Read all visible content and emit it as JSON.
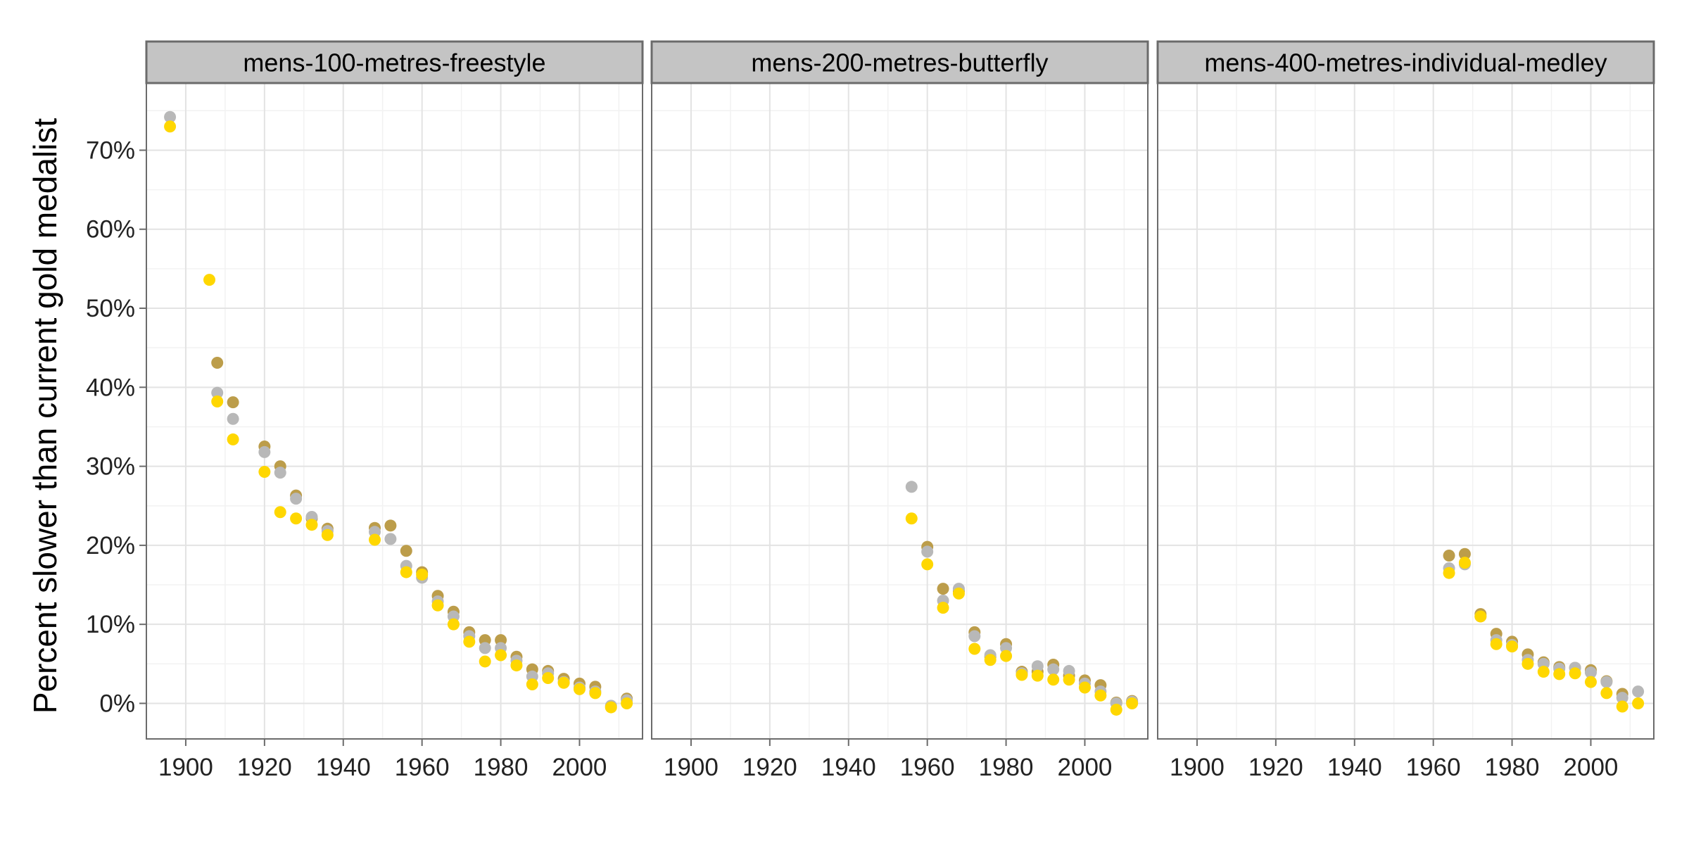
{
  "chart_data": {
    "type": "scatter",
    "ylabel": "Percent slower than current gold medalist",
    "x_ticks": [
      1900,
      1920,
      1940,
      1960,
      1980,
      2000
    ],
    "y_ticks": [
      "0%",
      "10%",
      "20%",
      "30%",
      "40%",
      "50%",
      "60%",
      "70%"
    ],
    "y_tick_values": [
      0,
      10,
      20,
      30,
      40,
      50,
      60,
      70
    ],
    "xlim": [
      1890,
      2016
    ],
    "ylim": [
      -4.5,
      78.5
    ],
    "grid": true,
    "colors": {
      "gold": "#FFD700",
      "silver": "#B8B8B8",
      "bronze": "#BC9D4A"
    },
    "panels": [
      {
        "title": "mens-100-metres-freestyle",
        "series": [
          {
            "color_key": "gold",
            "points": [
              [
                1896,
                73.0
              ],
              [
                1906,
                53.6
              ],
              [
                1908,
                38.2
              ],
              [
                1912,
                33.4
              ],
              [
                1920,
                29.3
              ],
              [
                1924,
                24.2
              ],
              [
                1928,
                23.4
              ],
              [
                1932,
                22.6
              ],
              [
                1936,
                21.3
              ],
              [
                1948,
                20.7
              ],
              [
                1956,
                16.6
              ],
              [
                1960,
                16.3
              ],
              [
                1964,
                12.4
              ],
              [
                1968,
                10.0
              ],
              [
                1972,
                7.8
              ],
              [
                1976,
                5.3
              ],
              [
                1980,
                6.1
              ],
              [
                1984,
                4.8
              ],
              [
                1988,
                2.4
              ],
              [
                1992,
                3.2
              ],
              [
                1996,
                2.6
              ],
              [
                2000,
                1.8
              ],
              [
                2004,
                1.3
              ],
              [
                2008,
                -0.5
              ],
              [
                2012,
                0.0
              ]
            ]
          },
          {
            "color_key": "silver",
            "points": [
              [
                1896,
                74.2
              ],
              [
                1908,
                39.3
              ],
              [
                1912,
                36.0
              ],
              [
                1920,
                31.8
              ],
              [
                1924,
                29.2
              ],
              [
                1928,
                25.9
              ],
              [
                1932,
                23.6
              ],
              [
                1936,
                21.8
              ],
              [
                1948,
                21.7
              ],
              [
                1952,
                20.8
              ],
              [
                1956,
                17.4
              ],
              [
                1960,
                15.9
              ],
              [
                1964,
                12.9
              ],
              [
                1968,
                11.0
              ],
              [
                1972,
                8.5
              ],
              [
                1976,
                7.0
              ],
              [
                1980,
                7.0
              ],
              [
                1984,
                5.4
              ],
              [
                1988,
                3.4
              ],
              [
                1992,
                3.8
              ],
              [
                1996,
                2.7
              ],
              [
                2000,
                2.0
              ],
              [
                2004,
                1.5
              ],
              [
                2008,
                -0.3
              ],
              [
                2012,
                0.4
              ]
            ]
          },
          {
            "color_key": "bronze",
            "points": [
              [
                1908,
                43.1
              ],
              [
                1912,
                38.1
              ],
              [
                1920,
                32.5
              ],
              [
                1924,
                30.0
              ],
              [
                1928,
                26.3
              ],
              [
                1932,
                23.4
              ],
              [
                1936,
                22.1
              ],
              [
                1948,
                22.2
              ],
              [
                1952,
                22.5
              ],
              [
                1956,
                19.3
              ],
              [
                1960,
                16.6
              ],
              [
                1964,
                13.6
              ],
              [
                1968,
                11.6
              ],
              [
                1972,
                9.0
              ],
              [
                1976,
                8.0
              ],
              [
                1980,
                8.0
              ],
              [
                1984,
                5.9
              ],
              [
                1988,
                4.3
              ],
              [
                1992,
                4.1
              ],
              [
                1996,
                3.1
              ],
              [
                2000,
                2.5
              ],
              [
                2004,
                2.1
              ],
              [
                2012,
                0.6
              ]
            ]
          }
        ]
      },
      {
        "title": "mens-200-metres-butterfly",
        "series": [
          {
            "color_key": "gold",
            "points": [
              [
                1956,
                23.4
              ],
              [
                1960,
                17.6
              ],
              [
                1964,
                12.1
              ],
              [
                1968,
                13.9
              ],
              [
                1972,
                6.9
              ],
              [
                1976,
                5.5
              ],
              [
                1980,
                6.0
              ],
              [
                1984,
                3.6
              ],
              [
                1988,
                3.5
              ],
              [
                1992,
                3.0
              ],
              [
                1996,
                3.0
              ],
              [
                2000,
                2.0
              ],
              [
                2004,
                1.0
              ],
              [
                2008,
                -0.8
              ],
              [
                2012,
                0.0
              ]
            ]
          },
          {
            "color_key": "silver",
            "points": [
              [
                1956,
                27.4
              ],
              [
                1960,
                19.2
              ],
              [
                1964,
                13.0
              ],
              [
                1968,
                14.5
              ],
              [
                1972,
                8.5
              ],
              [
                1976,
                6.1
              ],
              [
                1980,
                7.0
              ],
              [
                1984,
                3.8
              ],
              [
                1988,
                4.7
              ],
              [
                1992,
                4.3
              ],
              [
                1996,
                4.1
              ],
              [
                2000,
                2.5
              ],
              [
                2004,
                1.5
              ],
              [
                2008,
                0.0
              ],
              [
                2012,
                0.2
              ]
            ]
          },
          {
            "color_key": "bronze",
            "points": [
              [
                1960,
                19.8
              ],
              [
                1964,
                14.5
              ],
              [
                1968,
                14.2
              ],
              [
                1972,
                9.0
              ],
              [
                1976,
                5.9
              ],
              [
                1980,
                7.5
              ],
              [
                1984,
                4.0
              ],
              [
                1988,
                4.0
              ],
              [
                1992,
                4.9
              ],
              [
                1996,
                3.5
              ],
              [
                2000,
                2.9
              ],
              [
                2004,
                2.3
              ],
              [
                2008,
                0.1
              ],
              [
                2012,
                0.3
              ]
            ]
          }
        ]
      },
      {
        "title": "mens-400-metres-individual-medley",
        "series": [
          {
            "color_key": "gold",
            "points": [
              [
                1964,
                16.5
              ],
              [
                1968,
                17.8
              ],
              [
                1972,
                11.0
              ],
              [
                1976,
                7.5
              ],
              [
                1980,
                7.2
              ],
              [
                1984,
                5.0
              ],
              [
                1988,
                4.0
              ],
              [
                1992,
                3.7
              ],
              [
                1996,
                3.8
              ],
              [
                2000,
                2.7
              ],
              [
                2004,
                1.3
              ],
              [
                2008,
                -0.4
              ],
              [
                2012,
                0.0
              ]
            ]
          },
          {
            "color_key": "silver",
            "points": [
              [
                1964,
                17.1
              ],
              [
                1968,
                17.6
              ],
              [
                1972,
                11.0
              ],
              [
                1976,
                8.0
              ],
              [
                1980,
                7.4
              ],
              [
                1984,
                5.5
              ],
              [
                1988,
                5.0
              ],
              [
                1992,
                4.4
              ],
              [
                1996,
                4.5
              ],
              [
                2000,
                3.9
              ],
              [
                2004,
                2.7
              ],
              [
                2008,
                0.7
              ],
              [
                2012,
                1.5
              ]
            ]
          },
          {
            "color_key": "bronze",
            "points": [
              [
                1964,
                18.7
              ],
              [
                1968,
                18.9
              ],
              [
                1972,
                11.3
              ],
              [
                1976,
                8.8
              ],
              [
                1980,
                7.8
              ],
              [
                1984,
                6.2
              ],
              [
                1988,
                5.2
              ],
              [
                1992,
                4.6
              ],
              [
                1996,
                4.5
              ],
              [
                2000,
                4.2
              ],
              [
                2004,
                2.8
              ],
              [
                2008,
                1.2
              ]
            ]
          }
        ]
      }
    ]
  }
}
